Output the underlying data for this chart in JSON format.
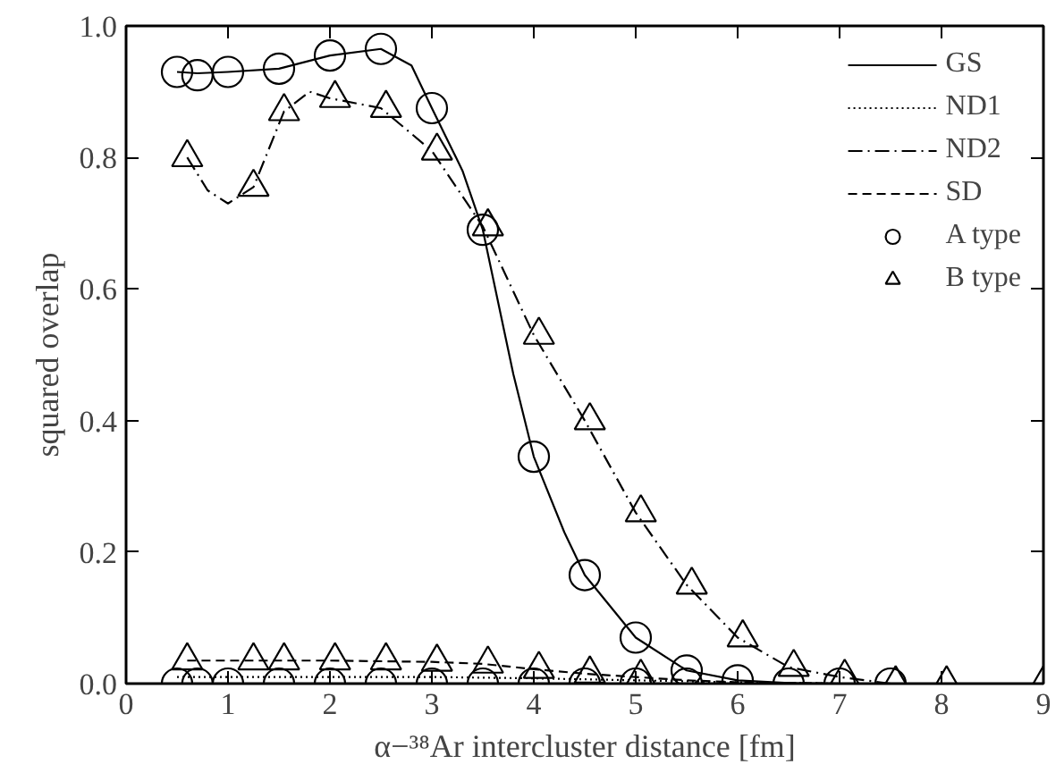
{
  "chart_data": {
    "type": "line",
    "xlabel": "α−³⁸Ar intercluster distance [fm]",
    "ylabel": "squared overlap",
    "xlim": [
      0,
      9
    ],
    "ylim": [
      0,
      1
    ],
    "xticks": [
      0,
      1,
      2,
      3,
      4,
      5,
      6,
      7,
      8,
      9
    ],
    "yticks": [
      {
        "value": 0,
        "label": "0.0"
      },
      {
        "value": 0.2,
        "label": "0.2"
      },
      {
        "value": 0.4,
        "label": "0.4"
      },
      {
        "value": 0.6,
        "label": "0.6"
      },
      {
        "value": 0.8,
        "label": "0.8"
      },
      {
        "value": 1,
        "label": "1.0"
      }
    ],
    "grid": false,
    "legend": "top right",
    "marker": "none",
    "series": [
      {
        "name": "GS",
        "line_style": "solid",
        "color": "#000000",
        "x": [
          0.5,
          0.7,
          1.0,
          1.5,
          2.0,
          2.5,
          2.8,
          3.0,
          3.3,
          3.5,
          3.8,
          4.0,
          4.3,
          4.5,
          5.0,
          5.5,
          6.0,
          6.5,
          7.0,
          7.5,
          9.0
        ],
        "values": [
          0.93,
          0.928,
          0.93,
          0.935,
          0.955,
          0.965,
          0.94,
          0.875,
          0.78,
          0.69,
          0.47,
          0.345,
          0.23,
          0.165,
          0.07,
          0.02,
          0.005,
          0.001,
          0,
          0,
          0
        ]
      },
      {
        "name": "ND1",
        "line_style": "dotted",
        "color": "#000000",
        "x": [
          0.5,
          1.0,
          2.0,
          3.0,
          4.0,
          5.0,
          6.0,
          7.0,
          9.0
        ],
        "values": [
          0.01,
          0.01,
          0.01,
          0.01,
          0.008,
          0.005,
          0.002,
          0,
          0
        ]
      },
      {
        "name": "ND2",
        "line_style": "dashdot",
        "color": "#000000",
        "x": [
          0.6,
          0.8,
          1.0,
          1.25,
          1.55,
          1.8,
          2.0,
          2.5,
          3.0,
          3.5,
          4.0,
          4.5,
          5.0,
          5.5,
          6.0,
          6.5,
          7.0,
          7.5,
          8.0,
          9.0
        ],
        "values": [
          0.8,
          0.75,
          0.73,
          0.755,
          0.87,
          0.9,
          0.89,
          0.875,
          0.81,
          0.695,
          0.53,
          0.4,
          0.26,
          0.15,
          0.07,
          0.025,
          0.01,
          0,
          0,
          0
        ]
      },
      {
        "name": "SD",
        "line_style": "dashed",
        "color": "#000000",
        "x": [
          0.6,
          1.0,
          2.0,
          3.0,
          3.5,
          4.0,
          4.5,
          5.0,
          5.5,
          6.0,
          7.0,
          9.0
        ],
        "values": [
          0.035,
          0.035,
          0.035,
          0.033,
          0.03,
          0.022,
          0.015,
          0.01,
          0.005,
          0.002,
          0,
          0
        ]
      },
      {
        "name": "A type",
        "type": "scatter",
        "marker": "circle",
        "color": "#000000",
        "x": [
          0.5,
          0.7,
          1.0,
          1.5,
          2.0,
          2.5,
          3.0,
          3.5,
          4.0,
          4.5,
          5.0,
          5.5,
          6.0,
          6.5,
          7.0,
          7.5,
          0.5,
          0.7,
          1.0,
          1.5,
          2.0,
          2.5,
          3.0,
          3.5,
          4.0,
          4.5,
          5.0,
          5.5
        ],
        "values": [
          0.93,
          0.925,
          0.93,
          0.935,
          0.955,
          0.965,
          0.875,
          0.69,
          0.345,
          0.165,
          0.07,
          0.02,
          0.005,
          0,
          0,
          0,
          0,
          0,
          0,
          0,
          0,
          0,
          0,
          0,
          0,
          0,
          0,
          0
        ]
      },
      {
        "name": "B type",
        "type": "scatter",
        "marker": "triangle",
        "color": "#000000",
        "x": [
          0.6,
          1.25,
          1.55,
          2.05,
          2.55,
          3.05,
          3.55,
          4.05,
          4.55,
          5.05,
          5.55,
          6.05,
          6.55,
          7.05,
          7.55,
          8.05,
          9.0,
          0.6,
          1.25,
          1.55,
          2.05,
          2.55,
          3.05,
          3.55,
          4.05,
          4.55,
          5.05
        ],
        "values": [
          0.8,
          0.755,
          0.87,
          0.89,
          0.875,
          0.81,
          0.695,
          0.53,
          0.4,
          0.26,
          0.15,
          0.07,
          0.025,
          0.01,
          0,
          0,
          0,
          0.035,
          0.035,
          0.035,
          0.035,
          0.035,
          0.033,
          0.03,
          0.022,
          0.015,
          0.01
        ]
      }
    ]
  }
}
